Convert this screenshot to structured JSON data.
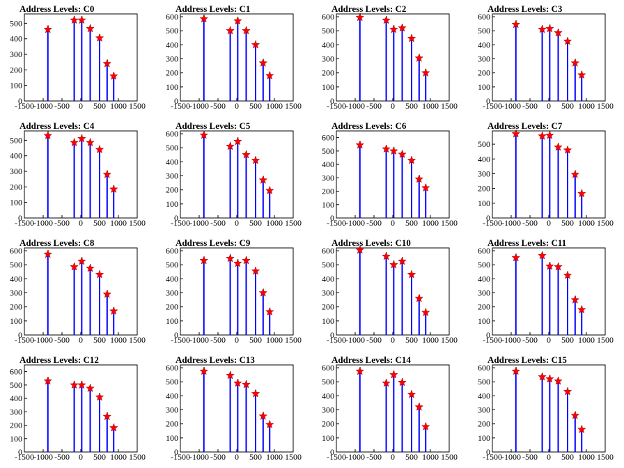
{
  "figure": {
    "xticks": [
      -1500,
      -1000,
      -500,
      0,
      500,
      1000,
      1500
    ],
    "xlim": [
      -1500,
      1500
    ],
    "colors": {
      "histogram": "#0000ff",
      "marker": "#ff0000",
      "axis": "#000000",
      "background": "#ffffff"
    }
  },
  "chart_data": [
    {
      "title": "Address Levels: C0",
      "type": "bar",
      "ylim": [
        0,
        560
      ],
      "yticks": [
        0,
        100,
        200,
        300,
        400,
        500
      ],
      "x": [
        -875,
        -175,
        25,
        250,
        500,
        700,
        875
      ],
      "values": [
        460,
        520,
        520,
        465,
        405,
        240,
        160
      ]
    },
    {
      "title": "Address Levels: C1",
      "type": "bar",
      "ylim": [
        0,
        620
      ],
      "yticks": [
        0,
        100,
        200,
        300,
        400,
        500,
        600
      ],
      "x": [
        -875,
        -175,
        25,
        250,
        500,
        700,
        875
      ],
      "values": [
        585,
        500,
        570,
        500,
        400,
        270,
        180
      ]
    },
    {
      "title": "Address Levels: C2",
      "type": "bar",
      "ylim": [
        0,
        620
      ],
      "yticks": [
        0,
        100,
        200,
        300,
        400,
        500,
        600
      ],
      "x": [
        -875,
        -175,
        25,
        250,
        500,
        700,
        875
      ],
      "values": [
        595,
        575,
        510,
        520,
        445,
        305,
        200
      ]
    },
    {
      "title": "Address Levels: C3",
      "type": "bar",
      "ylim": [
        0,
        620
      ],
      "yticks": [
        0,
        100,
        200,
        300,
        400,
        500,
        600
      ],
      "x": [
        -875,
        -175,
        25,
        250,
        500,
        700,
        875
      ],
      "values": [
        545,
        510,
        515,
        485,
        425,
        270,
        185
      ]
    },
    {
      "title": "Address Levels: C4",
      "type": "bar",
      "ylim": [
        0,
        560
      ],
      "yticks": [
        0,
        100,
        200,
        300,
        400,
        500
      ],
      "x": [
        -875,
        -175,
        25,
        250,
        500,
        700,
        875
      ],
      "values": [
        530,
        485,
        510,
        485,
        440,
        280,
        185
      ]
    },
    {
      "title": "Address Levels: C5",
      "type": "bar",
      "ylim": [
        0,
        620
      ],
      "yticks": [
        0,
        100,
        200,
        300,
        400,
        500,
        600
      ],
      "x": [
        -875,
        -175,
        25,
        250,
        500,
        700,
        875
      ],
      "values": [
        590,
        510,
        545,
        450,
        410,
        270,
        195
      ]
    },
    {
      "title": "Address Levels: C6",
      "type": "bar",
      "ylim": [
        0,
        650
      ],
      "yticks": [
        0,
        100,
        200,
        300,
        400,
        500,
        600
      ],
      "x": [
        -875,
        -175,
        25,
        250,
        500,
        700,
        875
      ],
      "values": [
        545,
        515,
        500,
        475,
        430,
        290,
        225
      ]
    },
    {
      "title": "Address Levels: C7",
      "type": "bar",
      "ylim": [
        0,
        590
      ],
      "yticks": [
        0,
        100,
        200,
        300,
        400,
        500
      ],
      "x": [
        -875,
        -175,
        25,
        250,
        500,
        700,
        875
      ],
      "values": [
        570,
        555,
        560,
        480,
        460,
        295,
        165
      ]
    },
    {
      "title": "Address Levels: C8",
      "type": "bar",
      "ylim": [
        0,
        620
      ],
      "yticks": [
        0,
        100,
        200,
        300,
        400,
        500,
        600
      ],
      "x": [
        -875,
        -175,
        25,
        250,
        500,
        700,
        875
      ],
      "values": [
        575,
        485,
        525,
        475,
        430,
        290,
        170
      ]
    },
    {
      "title": "Address Levels: C9",
      "type": "bar",
      "ylim": [
        0,
        620
      ],
      "yticks": [
        0,
        100,
        200,
        300,
        400,
        500,
        600
      ],
      "x": [
        -875,
        -175,
        25,
        250,
        500,
        700,
        875
      ],
      "values": [
        530,
        545,
        510,
        530,
        455,
        300,
        165
      ]
    },
    {
      "title": "Address Levels: C10",
      "type": "bar",
      "ylim": [
        0,
        620
      ],
      "yticks": [
        0,
        100,
        200,
        300,
        400,
        500,
        600
      ],
      "x": [
        -875,
        -175,
        25,
        250,
        500,
        700,
        875
      ],
      "values": [
        605,
        560,
        500,
        525,
        430,
        260,
        160
      ]
    },
    {
      "title": "Address Levels: C11",
      "type": "bar",
      "ylim": [
        0,
        620
      ],
      "yticks": [
        0,
        100,
        200,
        300,
        400,
        500,
        600
      ],
      "x": [
        -875,
        -175,
        25,
        250,
        500,
        700,
        875
      ],
      "values": [
        550,
        565,
        490,
        485,
        425,
        250,
        180
      ]
    },
    {
      "title": "Address Levels: C12",
      "type": "bar",
      "ylim": [
        0,
        650
      ],
      "yticks": [
        0,
        100,
        200,
        300,
        400,
        500,
        600
      ],
      "x": [
        -875,
        -175,
        25,
        250,
        500,
        700,
        875
      ],
      "values": [
        530,
        500,
        500,
        475,
        410,
        265,
        180
      ]
    },
    {
      "title": "Address Levels: C13",
      "type": "bar",
      "ylim": [
        0,
        620
      ],
      "yticks": [
        0,
        100,
        200,
        300,
        400,
        500,
        600
      ],
      "x": [
        -875,
        -175,
        25,
        250,
        500,
        700,
        875
      ],
      "values": [
        575,
        545,
        490,
        480,
        415,
        255,
        195
      ]
    },
    {
      "title": "Address Levels: C14",
      "type": "bar",
      "ylim": [
        0,
        620
      ],
      "yticks": [
        0,
        100,
        200,
        300,
        400,
        500,
        600
      ],
      "x": [
        -875,
        -175,
        25,
        250,
        500,
        700,
        875
      ],
      "values": [
        575,
        490,
        550,
        495,
        410,
        320,
        180
      ]
    },
    {
      "title": "Address Levels: C15",
      "type": "bar",
      "ylim": [
        0,
        620
      ],
      "yticks": [
        0,
        100,
        200,
        300,
        400,
        500,
        600
      ],
      "x": [
        -875,
        -175,
        25,
        250,
        500,
        700,
        875
      ],
      "values": [
        575,
        535,
        520,
        505,
        430,
        260,
        160
      ]
    }
  ]
}
